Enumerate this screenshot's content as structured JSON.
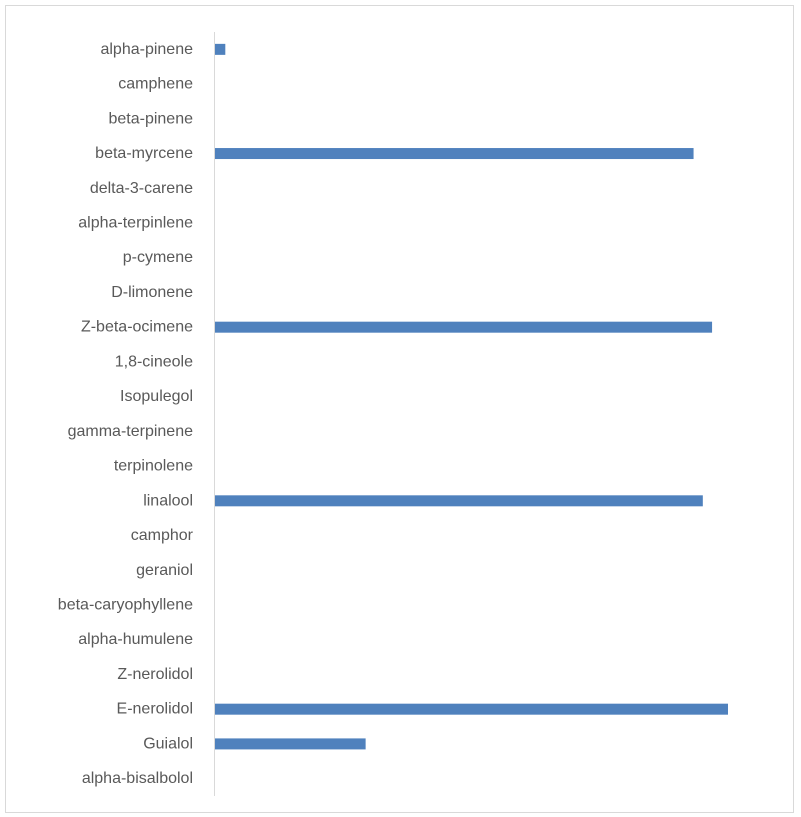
{
  "chart_data": {
    "type": "bar",
    "orientation": "horizontal",
    "title": "",
    "xlabel": "",
    "ylabel": "",
    "grid": false,
    "legend": "none",
    "bar_color": "#4f81bd",
    "xlim": [
      0,
      1
    ],
    "categories": [
      "alpha-pinene",
      "camphene",
      "beta-pinene",
      "beta-myrcene",
      "delta-3-carene",
      "alpha-terpinlene",
      "p-cymene",
      "D-limonene",
      "Z-beta-ocimene",
      "1,8-cineole",
      "Isopulegol",
      "gamma-terpinene",
      "terpinolene",
      "linalool",
      "camphor",
      "geraniol",
      "beta-caryophyllene",
      "alpha-humulene",
      "Z-nerolidol",
      "E-nerolidol",
      "Guialol",
      "alpha-bisalbolol"
    ],
    "values": [
      0.022,
      0,
      0,
      0.933,
      0,
      0,
      0,
      0,
      0.969,
      0,
      0,
      0,
      0,
      0.951,
      0,
      0,
      0,
      0,
      0,
      1.0,
      0.295,
      0
    ]
  }
}
